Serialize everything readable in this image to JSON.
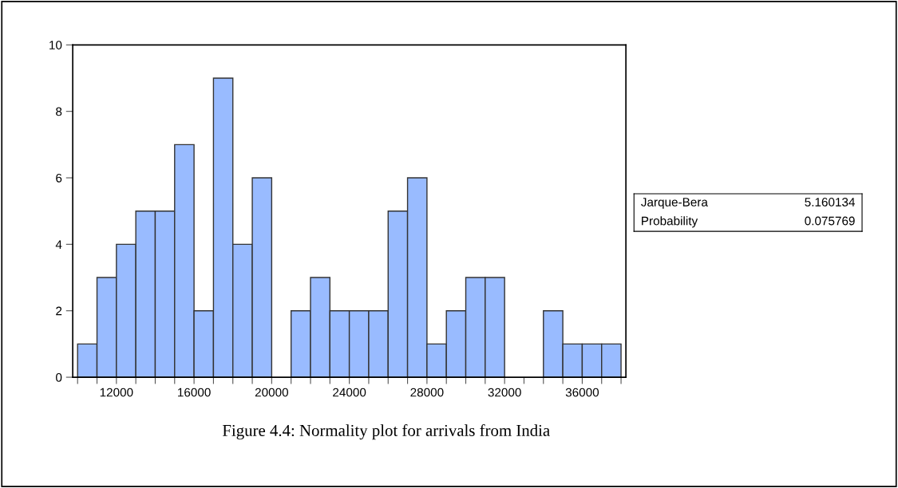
{
  "chart_data": {
    "type": "histogram",
    "title": "Figure 4.4: Normality plot for arrivals from India",
    "bins": [
      10000,
      11000,
      12000,
      13000,
      14000,
      15000,
      16000,
      17000,
      18000,
      19000,
      20000,
      21000,
      22000,
      23000,
      24000,
      25000,
      26000,
      27000,
      28000,
      29000,
      30000,
      31000,
      32000,
      33000,
      34000,
      35000,
      36000,
      37000,
      38000
    ],
    "values": [
      1,
      3,
      4,
      5,
      5,
      7,
      2,
      9,
      4,
      6,
      0,
      2,
      3,
      2,
      2,
      2,
      5,
      6,
      1,
      2,
      3,
      3,
      0,
      0,
      2,
      1,
      1,
      1
    ],
    "color": "#99bbff",
    "xlim": [
      9750,
      38250
    ],
    "xticks": [
      {
        "value": 10000,
        "label": null
      },
      {
        "value": 11000,
        "label": null
      },
      12000,
      {
        "value": 13000,
        "label": null
      },
      {
        "value": 14000,
        "label": null
      },
      {
        "value": 15000,
        "label": null
      },
      16000,
      {
        "value": 17000,
        "label": null
      },
      {
        "value": 18000,
        "label": null
      },
      {
        "value": 19000,
        "label": null
      },
      20000,
      {
        "value": 21000,
        "label": null
      },
      {
        "value": 22000,
        "label": null
      },
      {
        "value": 23000,
        "label": null
      },
      24000,
      {
        "value": 25000,
        "label": null
      },
      {
        "value": 26000,
        "label": null
      },
      {
        "value": 27000,
        "label": null
      },
      28000,
      {
        "value": 29000,
        "label": null
      },
      {
        "value": 30000,
        "label": null
      },
      {
        "value": 31000,
        "label": null
      },
      32000,
      {
        "value": 33000,
        "label": null
      },
      {
        "value": 34000,
        "label": null
      },
      {
        "value": 35000,
        "label": null
      },
      36000,
      {
        "value": 37000,
        "label": null
      },
      {
        "value": 38000,
        "label": null
      }
    ],
    "ylim": [
      0,
      10
    ],
    "yticks": [
      0,
      2,
      4,
      6,
      8,
      10
    ],
    "grid": false,
    "annotations": [
      "Jarque-Bera",
      "5.160134",
      "Probability",
      "0.075769"
    ]
  }
}
